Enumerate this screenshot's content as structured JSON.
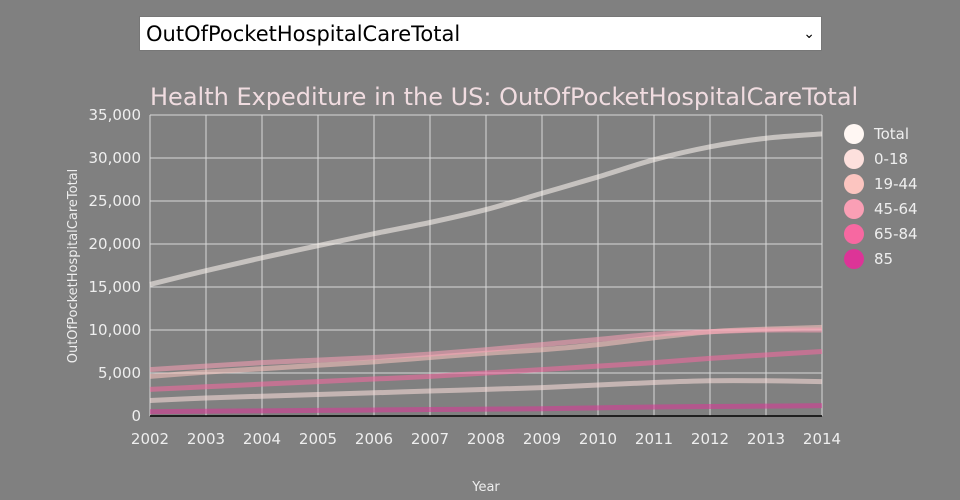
{
  "dropdown": {
    "selected": "OutOfPocketHospitalCareTotal",
    "icon": "chevron-down-icon"
  },
  "chart_data": {
    "type": "line",
    "title": "Health Expediture in the US: OutOfPocketHospitalCareTotal",
    "xlabel": "Year",
    "ylabel": "OutOfPocketHospitalCareTotal",
    "x": [
      2002,
      2003,
      2004,
      2005,
      2006,
      2007,
      2008,
      2009,
      2010,
      2011,
      2012,
      2013,
      2014
    ],
    "ylim": [
      0,
      35000
    ],
    "yticks": [
      "0",
      "5,000",
      "10,000",
      "15,000",
      "20,000",
      "25,000",
      "30,000",
      "35,000"
    ],
    "grid": true,
    "legend_position": "right",
    "series": [
      {
        "name": "Total",
        "color": "#fff7f3",
        "values": [
          15300,
          16900,
          18400,
          19800,
          21200,
          22500,
          24000,
          25900,
          27800,
          29800,
          31300,
          32300,
          32800
        ]
      },
      {
        "name": "0-18",
        "color": "#fde0dd",
        "values": [
          1800,
          2100,
          2300,
          2500,
          2700,
          2900,
          3100,
          3300,
          3600,
          3900,
          4100,
          4100,
          4000
        ]
      },
      {
        "name": "19-44",
        "color": "#fcc5c0",
        "values": [
          4600,
          5100,
          5500,
          5900,
          6300,
          6800,
          7300,
          7700,
          8300,
          9100,
          9800,
          10100,
          10300
        ]
      },
      {
        "name": "45-64",
        "color": "#fa9fb5",
        "values": [
          5400,
          5800,
          6200,
          6500,
          6800,
          7200,
          7700,
          8300,
          8900,
          9500,
          9800,
          10000,
          10000
        ]
      },
      {
        "name": "65-84",
        "color": "#f768a1",
        "values": [
          3100,
          3400,
          3700,
          4000,
          4300,
          4600,
          5000,
          5400,
          5800,
          6200,
          6700,
          7100,
          7500
        ]
      },
      {
        "name": "85",
        "color": "#dd3497",
        "values": [
          500,
          550,
          600,
          650,
          700,
          750,
          800,
          850,
          950,
          1050,
          1100,
          1150,
          1200
        ]
      }
    ]
  }
}
